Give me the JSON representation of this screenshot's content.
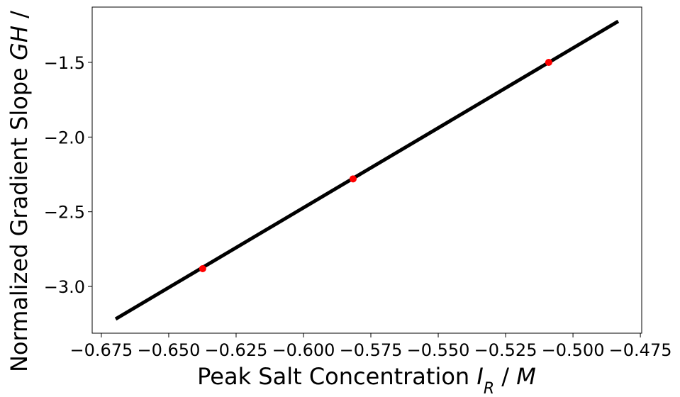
{
  "chart_data": {
    "type": "line",
    "x_label": [
      {
        "text": "Peak Salt Concentration ",
        "style": "normal"
      },
      {
        "text": "I",
        "style": "italic"
      },
      {
        "text": "R",
        "style": "sub-italic"
      },
      {
        "text": " / ",
        "style": "normal"
      },
      {
        "text": "M",
        "style": "italic"
      }
    ],
    "y_label": [
      {
        "text": "Normalized Gradient Slope ",
        "style": "normal"
      },
      {
        "text": "GH",
        "style": "italic"
      },
      {
        "text": " /",
        "style": "normal"
      }
    ],
    "xlim": [
      -0.6784,
      -0.4745
    ],
    "ylim": [
      -3.313,
      -1.13
    ],
    "xticks": [
      {
        "value": -0.675,
        "label": "−0.675"
      },
      {
        "value": -0.65,
        "label": "−0.650"
      },
      {
        "value": -0.625,
        "label": "−0.625"
      },
      {
        "value": -0.6,
        "label": "−0.600"
      },
      {
        "value": -0.575,
        "label": "−0.575"
      },
      {
        "value": -0.55,
        "label": "−0.550"
      },
      {
        "value": -0.525,
        "label": "−0.525"
      },
      {
        "value": -0.5,
        "label": "−0.500"
      },
      {
        "value": -0.475,
        "label": "−0.475"
      }
    ],
    "yticks": [
      {
        "value": -3.0,
        "label": "−3.0"
      },
      {
        "value": -2.5,
        "label": "−2.5"
      },
      {
        "value": -2.0,
        "label": "−2.0"
      },
      {
        "value": -1.5,
        "label": "−1.5"
      }
    ],
    "grid": false,
    "series": [
      {
        "style": "line",
        "color": "#000000",
        "x": [
          -0.6697,
          -0.4832
        ],
        "y": [
          -3.218,
          -1.225
        ]
      },
      {
        "style": "marker",
        "color": "#ff0000",
        "x": [
          -0.6374,
          -0.5816,
          -0.509
        ],
        "y": [
          -2.881,
          -2.28,
          -1.5
        ]
      }
    ]
  }
}
